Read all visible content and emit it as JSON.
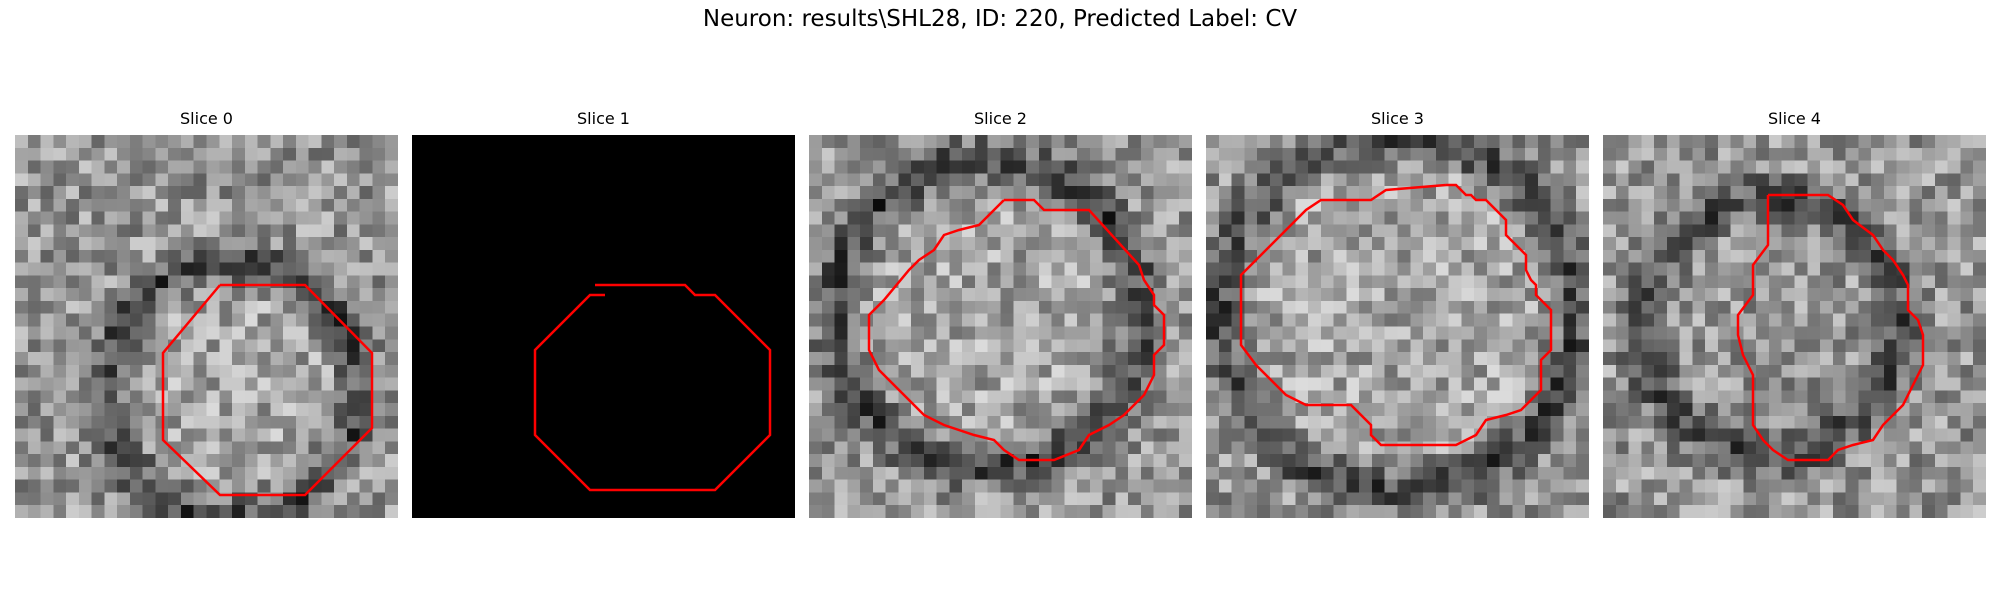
{
  "figure": {
    "title": "Neuron: results\\SHL28, ID: 220, Predicted Label: CV"
  },
  "panels": [
    {
      "title": "Slice 0",
      "blank": false
    },
    {
      "title": "Slice 1",
      "blank": true
    },
    {
      "title": "Slice 2",
      "blank": false
    },
    {
      "title": "Slice 3",
      "blank": false
    },
    {
      "title": "Slice 4",
      "blank": false
    }
  ],
  "colors": {
    "contour": "#ff0000",
    "blank_slice": "#000000",
    "colormap": "grayscale"
  }
}
